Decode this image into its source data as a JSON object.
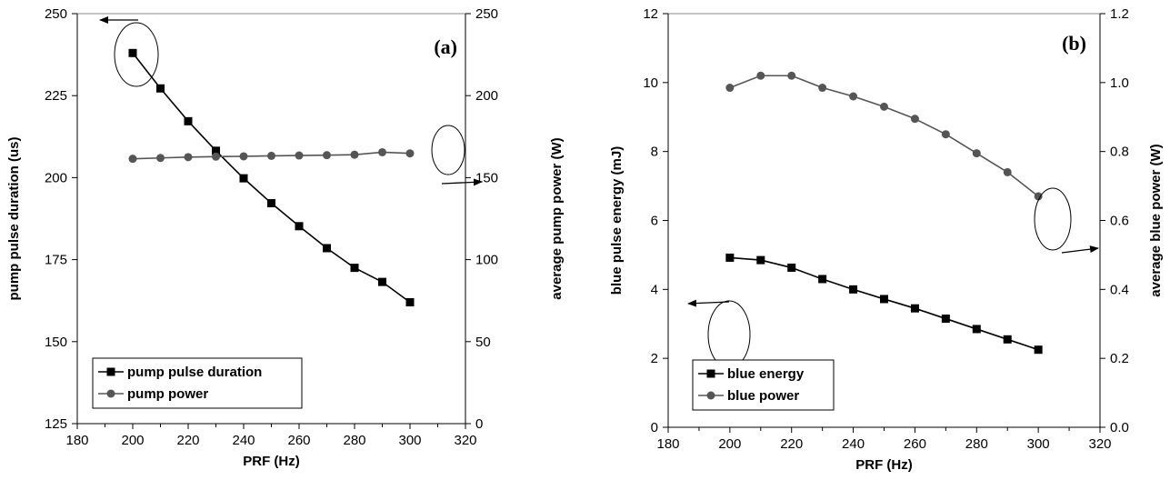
{
  "chart_data": [
    {
      "type": "line",
      "panel_label": "(a)",
      "xlabel": "PRF (Hz)",
      "ylabel": "pump pulse duration (us)",
      "y2label": "average pump power (W)",
      "xlim": [
        180,
        320
      ],
      "ylim": [
        125,
        250
      ],
      "y2lim": [
        0,
        250
      ],
      "xticks": [
        "180",
        "200",
        "220",
        "240",
        "260",
        "280",
        "300",
        "320"
      ],
      "yticks": [
        "125",
        "150",
        "175",
        "200",
        "225",
        "250"
      ],
      "y2ticks": [
        "0",
        "50",
        "100",
        "150",
        "200",
        "250"
      ],
      "grid": false,
      "legend_position": "bottom-left",
      "x": [
        200,
        210,
        220,
        230,
        240,
        250,
        260,
        270,
        280,
        290,
        300
      ],
      "series": [
        {
          "name": "pump pulse duration",
          "axis": "left",
          "marker": "square",
          "color": "#000000",
          "values": [
            238,
            227.2,
            217.2,
            208.2,
            199.8,
            192.2,
            185.2,
            178.5,
            172.5,
            168.2,
            162
          ]
        },
        {
          "name": "pump power",
          "axis": "right",
          "marker": "circle",
          "color": "#555555",
          "values": [
            161.5,
            162,
            162.5,
            162.8,
            163,
            163.3,
            163.5,
            163.7,
            164,
            165.5,
            164.8
          ]
        }
      ]
    },
    {
      "type": "line",
      "panel_label": "(b)",
      "xlabel": "PRF (Hz)",
      "ylabel": "blue pulse energy (mJ)",
      "y2label": "average blue power (W)",
      "xlim": [
        180,
        320
      ],
      "ylim": [
        0,
        12
      ],
      "y2lim": [
        0,
        1.2
      ],
      "xticks": [
        "180",
        "200",
        "220",
        "240",
        "260",
        "280",
        "300",
        "320"
      ],
      "yticks": [
        "0",
        "2",
        "4",
        "6",
        "8",
        "10",
        "12"
      ],
      "y2ticks": [
        "0.0",
        "0.2",
        "0.4",
        "0.6",
        "0.8",
        "1.0",
        "1.2"
      ],
      "grid": false,
      "legend_position": "bottom-left",
      "x": [
        200,
        210,
        220,
        230,
        240,
        250,
        260,
        270,
        280,
        290,
        300
      ],
      "series": [
        {
          "name": "blue energy",
          "axis": "left",
          "marker": "square",
          "color": "#000000",
          "values": [
            4.92,
            4.85,
            4.63,
            4.3,
            4.0,
            3.72,
            3.45,
            3.15,
            2.85,
            2.55,
            2.25
          ]
        },
        {
          "name": "blue power",
          "axis": "right",
          "marker": "circle",
          "color": "#555555",
          "values": [
            0.985,
            1.02,
            1.02,
            0.985,
            0.96,
            0.93,
            0.895,
            0.85,
            0.795,
            0.74,
            0.67
          ]
        }
      ]
    }
  ]
}
